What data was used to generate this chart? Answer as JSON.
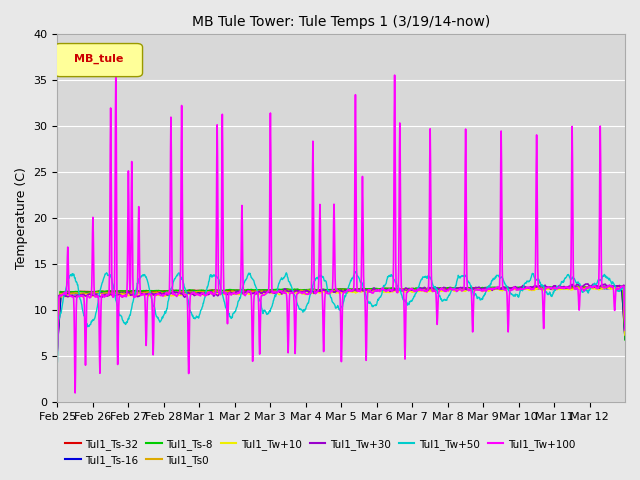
{
  "title": "MB Tule Tower: Tule Temps 1 (3/19/14-now)",
  "ylabel": "Temperature (C)",
  "ylim": [
    0,
    40
  ],
  "yticks": [
    0,
    5,
    10,
    15,
    20,
    25,
    30,
    35,
    40
  ],
  "legend_label": "MB_tule",
  "date_labels": [
    "Feb 25",
    "Feb 26",
    "Feb 27",
    "Feb 28",
    "Mar 1",
    "Mar 2",
    "Mar 3",
    "Mar 4",
    "Mar 5",
    "Mar 6",
    "Mar 7",
    "Mar 8",
    "Mar 9",
    "Mar 10",
    "Mar 11",
    "Mar 12"
  ],
  "series": [
    {
      "label": "Tul1_Ts-32",
      "color": "#dd0000",
      "lw": 1.0
    },
    {
      "label": "Tul1_Ts-16",
      "color": "#0000dd",
      "lw": 1.0
    },
    {
      "label": "Tul1_Ts-8",
      "color": "#00cc00",
      "lw": 1.0
    },
    {
      "label": "Tul1_Ts0",
      "color": "#ddaa00",
      "lw": 1.0
    },
    {
      "label": "Tul1_Tw+10",
      "color": "#eeee00",
      "lw": 1.0
    },
    {
      "label": "Tul1_Tw+30",
      "color": "#9900cc",
      "lw": 1.0
    },
    {
      "label": "Tul1_Tw+50",
      "color": "#00cccc",
      "lw": 1.0
    },
    {
      "label": "Tul1_Tw+100",
      "color": "#ff00ff",
      "lw": 1.2
    }
  ],
  "n_days": 16,
  "ppd": 96
}
